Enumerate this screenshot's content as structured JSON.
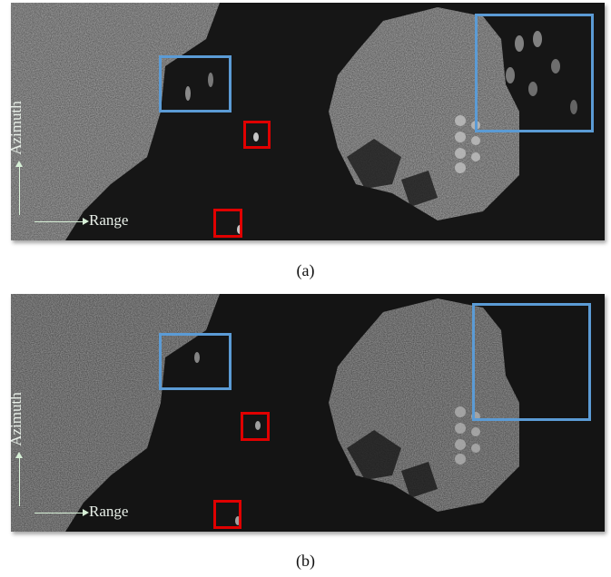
{
  "figure": {
    "panels": [
      {
        "id": "a",
        "caption": "(a)",
        "azimuth_label": "Azimuth",
        "range_label": "Range"
      },
      {
        "id": "b",
        "caption": "(b)",
        "azimuth_label": "Azimuth",
        "range_label": "Range"
      }
    ],
    "colors": {
      "blue_box": "#5b9bd5",
      "red_box": "#e00000",
      "arrow": "#d7f0d7"
    }
  }
}
